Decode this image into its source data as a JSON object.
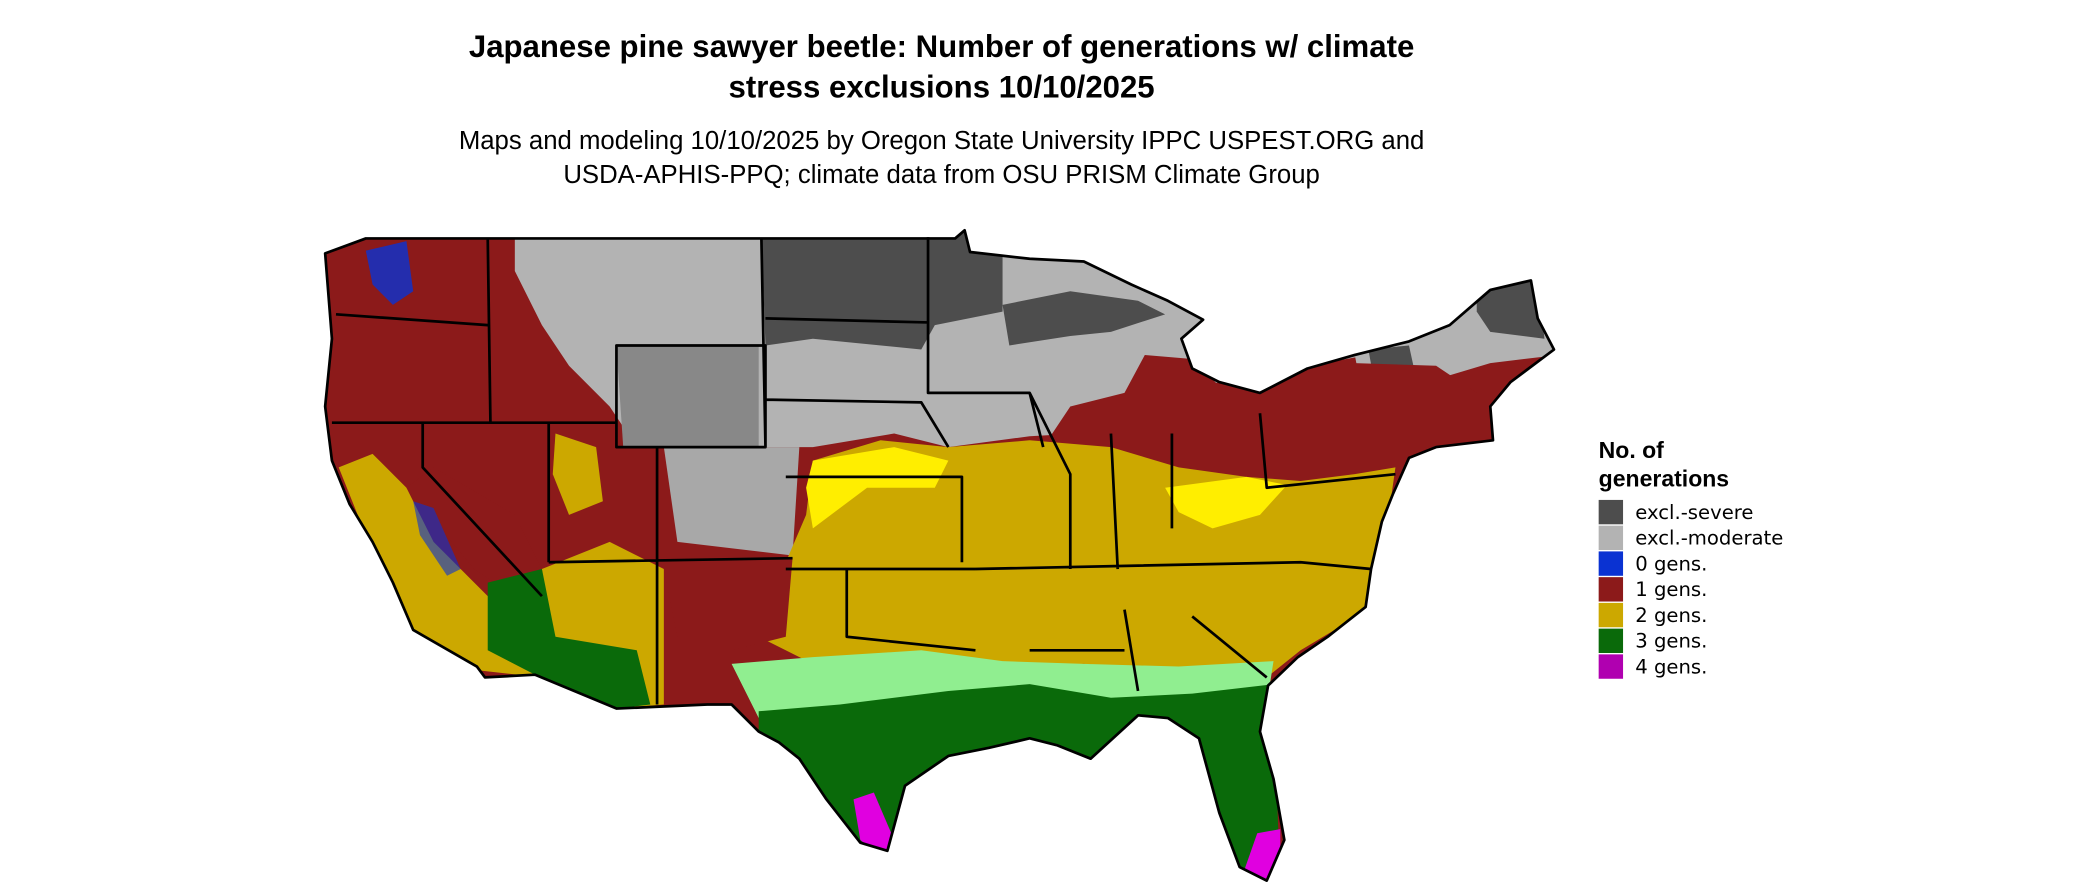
{
  "title": [
    "Japanese pine sawyer beetle: Number of generations w/ climate",
    "stress exclusions 10/10/2025"
  ],
  "subtitle": [
    "Maps and modeling 10/10/2025 by Oregon State University IPPC USPEST.ORG and",
    "USDA-APHIS-PPQ; climate data from OSU PRISM Climate Group"
  ],
  "legend": {
    "title": [
      "No. of",
      "generations"
    ],
    "items": [
      {
        "label": "excl.-severe",
        "color": "#4d4d4d"
      },
      {
        "label": "excl.-moderate",
        "color": "#b3b3b3"
      },
      {
        "label": "0 gens.",
        "color": "#0a32d2"
      },
      {
        "label": "1 gens.",
        "color": "#8c1a1a"
      },
      {
        "label": "2 gens.",
        "color": "#cca800"
      },
      {
        "label": "3 gens.",
        "color": "#0a6a0a"
      },
      {
        "label": "4 gens.",
        "color": "#b000b0"
      }
    ]
  }
}
